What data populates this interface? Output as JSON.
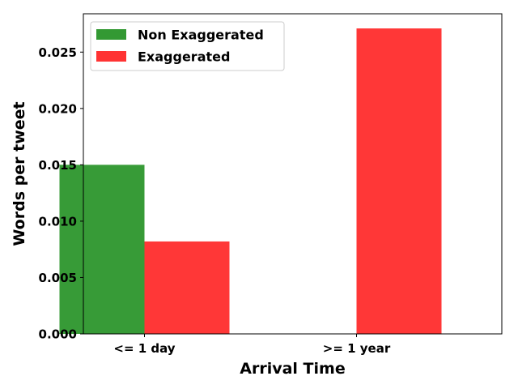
{
  "chart_data": {
    "type": "bar",
    "title": "",
    "xlabel": "Arrival Time",
    "ylabel": "Words per tweet",
    "categories": [
      "<= 1 day",
      ">= 1 year"
    ],
    "series": [
      {
        "name": "Non Exaggerated",
        "color": "#339933",
        "values": [
          0.015,
          0.0
        ]
      },
      {
        "name": "Exaggerated",
        "color": "#ff3333",
        "values": [
          0.0082,
          0.0271
        ]
      }
    ],
    "ylim": [
      0,
      0.0284
    ],
    "yticks": [
      "0.000",
      "0.005",
      "0.010",
      "0.015",
      "0.020",
      "0.025"
    ],
    "grid": false,
    "legend_position": "top-left"
  }
}
